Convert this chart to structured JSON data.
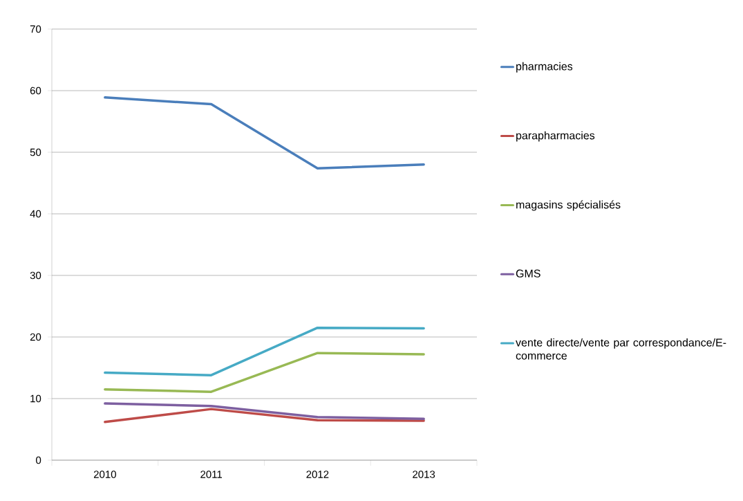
{
  "chart_data": {
    "type": "line",
    "categories": [
      "2010",
      "2011",
      "2012",
      "2013"
    ],
    "series": [
      {
        "name": "pharmacies",
        "color": "#4a7ebb",
        "values": [
          58.9,
          57.8,
          47.4,
          48.0
        ]
      },
      {
        "name": "parapharmacies",
        "color": "#be4b48",
        "values": [
          6.2,
          8.3,
          6.5,
          6.4
        ]
      },
      {
        "name": "magasins spécialisés",
        "color": "#98b954",
        "values": [
          11.5,
          11.1,
          17.4,
          17.2
        ]
      },
      {
        "name": "GMS",
        "color": "#7d5fa0",
        "values": [
          9.2,
          8.8,
          7.0,
          6.7
        ]
      },
      {
        "name": "vente directe/vente par correspondance/E-commerce",
        "color": "#46aac5",
        "values": [
          14.2,
          13.8,
          21.5,
          21.4
        ]
      }
    ],
    "ylim": [
      0,
      70
    ],
    "yticks": [
      0,
      10,
      20,
      30,
      40,
      50,
      60,
      70
    ],
    "grid": "y",
    "legend": "right",
    "marker": "none",
    "line_style": "solid"
  }
}
